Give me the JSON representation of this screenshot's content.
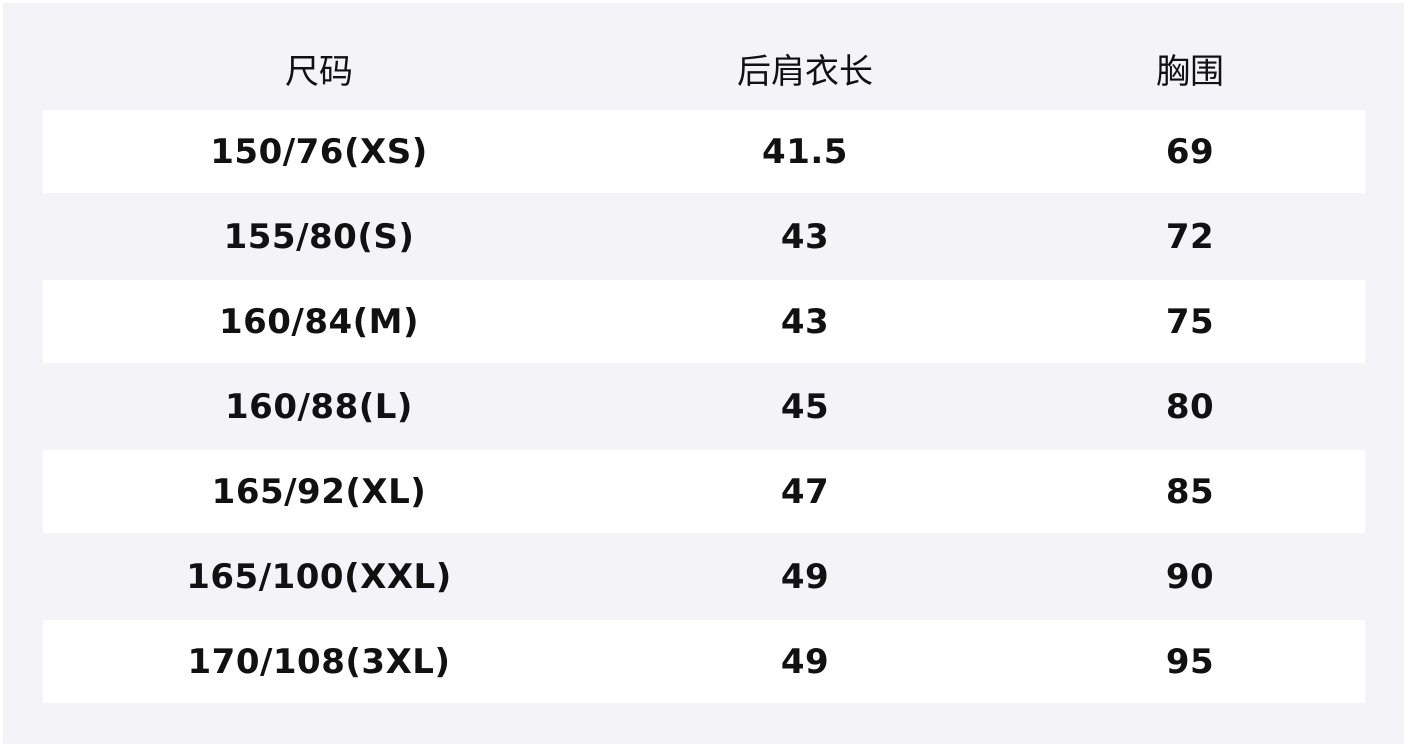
{
  "table": {
    "headers": [
      "尺码",
      "后肩衣长",
      "胸围"
    ],
    "rows": [
      [
        "150/76(XS)",
        "41.5",
        "69"
      ],
      [
        "155/80(S)",
        "43",
        "72"
      ],
      [
        "160/84(M)",
        "43",
        "75"
      ],
      [
        "160/88(L)",
        "45",
        "80"
      ],
      [
        "165/92(XL)",
        "47",
        "85"
      ],
      [
        "165/100(XXL)",
        "49",
        "90"
      ],
      [
        "170/108(3XL)",
        "49",
        "95"
      ]
    ]
  },
  "colors": {
    "panel": "#f3f3f8",
    "row_highlight": "#ffffff",
    "text": "#111111"
  }
}
